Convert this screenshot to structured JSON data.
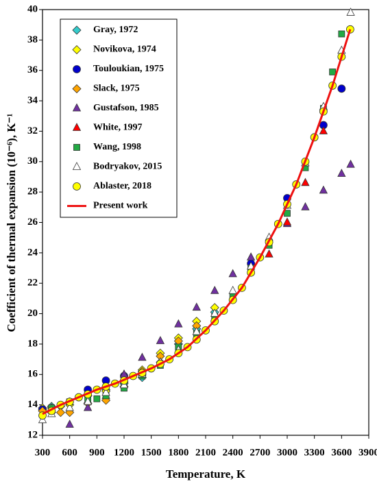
{
  "chart_data": {
    "type": "scatter",
    "xlabel": "Temperature, K",
    "ylabel": "Coefficient of thermal expansion (10⁻⁶), K⁻¹",
    "xlim": [
      300,
      3900
    ],
    "xticks": [
      300,
      600,
      900,
      1200,
      1500,
      1800,
      2100,
      2400,
      2700,
      3000,
      3300,
      3600,
      3900
    ],
    "ylim": [
      12,
      40
    ],
    "yticks": [
      12,
      14,
      16,
      18,
      20,
      22,
      24,
      26,
      28,
      30,
      32,
      34,
      36,
      38,
      40
    ],
    "legend": "upper left",
    "series": [
      {
        "name": "Gray, 1972",
        "color": "#33cccc",
        "marker": "diamond",
        "x": [
          300,
          400,
          600,
          800,
          1000,
          1200,
          1400,
          1600,
          1800,
          2000,
          2200
        ],
        "values": [
          13.7,
          13.9,
          14.2,
          14.6,
          15.0,
          15.4,
          15.8,
          16.8,
          18.0,
          19.0,
          20.1
        ]
      },
      {
        "name": "Novikova, 1974",
        "color": "#ffff00",
        "marker": "diamond",
        "x": [
          300,
          400,
          500,
          600,
          800,
          1000,
          1200,
          1400,
          1600,
          1800,
          2000,
          2200
        ],
        "values": [
          13.8,
          13.8,
          13.9,
          14.0,
          14.6,
          14.9,
          15.5,
          16.3,
          17.4,
          18.4,
          19.5,
          20.4
        ]
      },
      {
        "name": "Touloukian, 1975",
        "color": "#0000cc",
        "marker": "circle",
        "x": [
          300,
          800,
          1000,
          1200,
          1400,
          2600,
          3000,
          3400,
          3600
        ],
        "values": [
          13.7,
          15.0,
          15.6,
          15.9,
          16.0,
          23.3,
          27.6,
          32.4,
          34.8
        ]
      },
      {
        "name": "Slack, 1975",
        "color": "#ffa500",
        "marker": "diamond",
        "x": [
          300,
          400,
          500,
          600,
          800,
          1000,
          1200,
          1400,
          1600,
          1800,
          2000
        ],
        "values": [
          13.6,
          13.5,
          13.5,
          13.5,
          14.1,
          14.3,
          15.2,
          16.2,
          17.2,
          18.2,
          19.2
        ]
      },
      {
        "name": "Gustafson, 1985",
        "color": "#7030a0",
        "marker": "triangle",
        "x": [
          600,
          800,
          1000,
          1200,
          1400,
          1600,
          1800,
          2000,
          2200,
          2400,
          2600,
          2800,
          3000,
          3200,
          3400,
          3600,
          3700
        ],
        "values": [
          12.7,
          13.8,
          14.6,
          16.0,
          17.1,
          18.2,
          19.3,
          20.4,
          21.5,
          22.6,
          23.7,
          24.9,
          25.9,
          27.0,
          28.1,
          29.2,
          29.8
        ]
      },
      {
        "name": "White, 1997",
        "color": "#ff0000",
        "marker": "triangle",
        "x": [
          2800,
          3000,
          3200,
          3400
        ],
        "values": [
          23.9,
          26.0,
          28.6,
          32.0
        ]
      },
      {
        "name": "Wang, 1998",
        "color": "#22aa44",
        "marker": "square",
        "x": [
          400,
          600,
          800,
          900,
          1000,
          1200,
          1400,
          1600,
          1800,
          2000,
          2200,
          2400,
          2600,
          2800,
          3000,
          3200,
          3400,
          3500,
          3600
        ],
        "values": [
          13.8,
          14.2,
          14.3,
          14.4,
          14.6,
          15.1,
          15.9,
          16.6,
          17.8,
          18.7,
          19.8,
          21.2,
          23.0,
          24.5,
          26.6,
          29.6,
          33.5,
          35.9,
          38.4
        ]
      },
      {
        "name": "Bodryakov, 2015",
        "color": "#ffffff",
        "marker": "triangle",
        "x": [
          300,
          400,
          600,
          800,
          1000,
          1200,
          1400,
          1600,
          1800,
          2000,
          2200,
          2400,
          2600,
          2800,
          3000,
          3200,
          3400,
          3600,
          3700
        ],
        "values": [
          13.0,
          13.4,
          13.8,
          14.2,
          14.8,
          15.3,
          16.0,
          16.8,
          17.6,
          18.8,
          20.0,
          21.5,
          23.1,
          25.0,
          27.1,
          29.9,
          33.6,
          37.3,
          39.8
        ]
      },
      {
        "name": "Ablaster, 2018",
        "color": "#ffff00",
        "marker": "circle",
        "x": [
          300,
          400,
          500,
          600,
          700,
          800,
          900,
          1000,
          1100,
          1200,
          1300,
          1400,
          1500,
          1600,
          1700,
          1800,
          1900,
          2000,
          2100,
          2200,
          2300,
          2400,
          2500,
          2600,
          2700,
          2800,
          2900,
          3000,
          3100,
          3200,
          3300,
          3400,
          3500,
          3600,
          3695
        ],
        "values": [
          13.3,
          13.6,
          14.0,
          14.2,
          14.5,
          14.7,
          15.0,
          15.2,
          15.4,
          15.6,
          15.9,
          16.1,
          16.4,
          16.7,
          17.0,
          17.4,
          17.8,
          18.3,
          18.9,
          19.5,
          20.2,
          20.9,
          21.7,
          22.7,
          23.7,
          24.7,
          25.9,
          27.2,
          28.5,
          30.0,
          31.6,
          33.3,
          35.0,
          36.9,
          38.7
        ]
      },
      {
        "name": "Present work",
        "color": "#ee1111",
        "marker": "line",
        "x": [
          300,
          500,
          700,
          900,
          1100,
          1300,
          1500,
          1700,
          1900,
          2100,
          2300,
          2500,
          2700,
          2900,
          3100,
          3300,
          3500,
          3695
        ],
        "values": [
          13.4,
          14.0,
          14.5,
          15.0,
          15.4,
          15.9,
          16.4,
          17.0,
          17.8,
          18.9,
          20.2,
          21.7,
          23.7,
          25.9,
          28.5,
          31.6,
          35.0,
          38.7
        ]
      }
    ]
  }
}
